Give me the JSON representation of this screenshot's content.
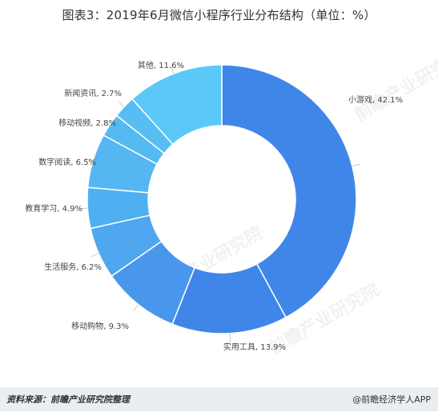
{
  "chart_data": {
    "type": "pie",
    "title": "图表3：2019年6月微信小程序行业分布结构（单位：%）",
    "legend": "none",
    "colors": [
      "#3f86e8",
      "#4897ec",
      "#4ea7ef",
      "#55b6f1",
      "#5cc5f4"
    ],
    "slices": [
      {
        "label": "小游戏",
        "value": 42.1,
        "color": "#3f86e8",
        "text": "小游戏, 42.1%"
      },
      {
        "label": "实用工具",
        "value": 13.9,
        "color": "#3f86e8",
        "text": "实用工具, 13.9%"
      },
      {
        "label": "移动购物",
        "value": 9.3,
        "color": "#4897ec",
        "text": "移动购物, 9.3%"
      },
      {
        "label": "生活服务",
        "value": 6.2,
        "color": "#4ea7ef",
        "text": "生活服务, 6.2%"
      },
      {
        "label": "教育学习",
        "value": 4.9,
        "color": "#4fb0f1",
        "text": "教育学习, 4.9%"
      },
      {
        "label": "数字阅读",
        "value": 6.5,
        "color": "#55b6f1",
        "text": "数字阅读, 6.5%"
      },
      {
        "label": "移动视频",
        "value": 2.8,
        "color": "#56baf2",
        "text": "移动视频, 2.8%"
      },
      {
        "label": "新闻资讯",
        "value": 2.7,
        "color": "#57bdf3",
        "text": "新闻资讯, 2.7%"
      },
      {
        "label": "其他",
        "value": 11.6,
        "color": "#5cc8f7",
        "text": "其他, 11.6%"
      }
    ]
  },
  "footer": {
    "source": "资料来源：前瞻产业研究院整理",
    "brand": "@前瞻经济学人APP"
  }
}
